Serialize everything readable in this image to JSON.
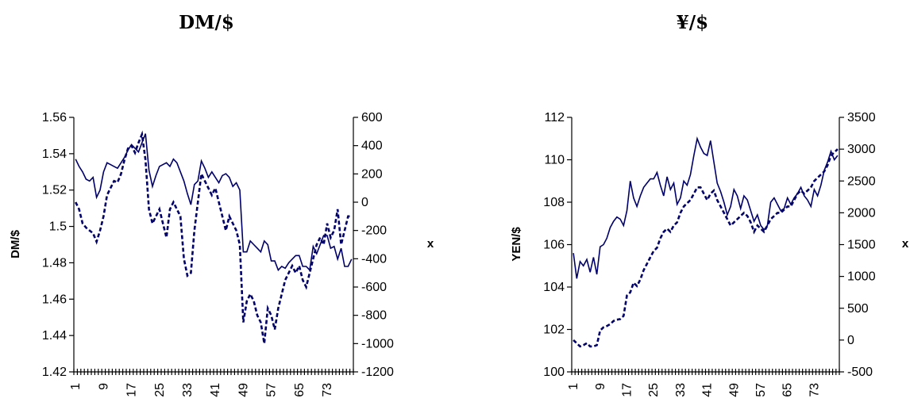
{
  "chart_data": [
    {
      "type": "line",
      "title": "DM/$",
      "ylabel": "DM/$",
      "y2label": "x",
      "ylim": [
        1.42,
        1.56
      ],
      "y2lim": [
        -1200,
        600
      ],
      "yticks": [
        "1.42",
        "1.44",
        "1.46",
        "1.48",
        "1.5",
        "1.52",
        "1.54",
        "1.56"
      ],
      "y2ticks": [
        "-1200",
        "-1000",
        "-800",
        "-600",
        "-400",
        "-200",
        "0",
        "200",
        "400",
        "600"
      ],
      "xticks": [
        "1",
        "9",
        "17",
        "25",
        "33",
        "41",
        "49",
        "57",
        "65",
        "73"
      ],
      "x_count": 80,
      "series": [
        {
          "style": "solid",
          "axis": "left",
          "values": [
            1.537,
            1.533,
            1.53,
            1.526,
            1.525,
            1.527,
            1.516,
            1.52,
            1.53,
            1.535,
            1.534,
            1.533,
            1.532,
            1.535,
            1.538,
            1.542,
            1.545,
            1.543,
            1.541,
            1.546,
            1.551,
            1.531,
            1.522,
            1.528,
            1.533,
            1.534,
            1.535,
            1.533,
            1.537,
            1.535,
            1.53,
            1.525,
            1.518,
            1.512,
            1.523,
            1.525,
            1.536,
            1.532,
            1.527,
            1.53,
            1.527,
            1.524,
            1.528,
            1.529,
            1.527,
            1.522,
            1.524,
            1.52,
            1.486,
            1.486,
            1.492,
            1.49,
            1.488,
            1.486,
            1.492,
            1.49,
            1.481,
            1.481,
            1.476,
            1.478,
            1.477,
            1.48,
            1.482,
            1.484,
            1.484,
            1.478,
            1.478,
            1.476,
            1.489,
            1.485,
            1.49,
            1.495,
            1.495,
            1.488,
            1.489,
            1.482,
            1.488,
            1.478,
            1.478,
            1.482
          ]
        },
        {
          "style": "dashed",
          "axis": "right",
          "values": [
            0,
            -50,
            -150,
            -180,
            -200,
            -220,
            -280,
            -200,
            -100,
            50,
            100,
            150,
            140,
            200,
            300,
            380,
            400,
            350,
            420,
            480,
            300,
            -50,
            -150,
            -100,
            -50,
            -150,
            -250,
            -50,
            0,
            -50,
            -100,
            -400,
            -520,
            -500,
            -200,
            0,
            200,
            150,
            100,
            50,
            100,
            0,
            -100,
            -200,
            -100,
            -150,
            -200,
            -300,
            -850,
            -700,
            -650,
            -700,
            -800,
            -850,
            -1000,
            -750,
            -800,
            -900,
            -750,
            -650,
            -550,
            -500,
            -450,
            -500,
            -450,
            -550,
            -600,
            -500,
            -400,
            -300,
            -250,
            -300,
            -150,
            -250,
            -200,
            -50,
            -300,
            -200,
            -100,
            -100
          ]
        }
      ]
    },
    {
      "type": "line",
      "title": "¥/$",
      "ylabel": "YEN/$",
      "y2label": "x",
      "ylim": [
        100,
        112
      ],
      "y2lim": [
        -500,
        3500
      ],
      "yticks": [
        "100",
        "102",
        "104",
        "106",
        "108",
        "110",
        "112"
      ],
      "y2ticks": [
        "-500",
        "0",
        "500",
        "1000",
        "1500",
        "2000",
        "2500",
        "3000",
        "3500"
      ],
      "xticks": [
        "1",
        "9",
        "17",
        "25",
        "33",
        "41",
        "49",
        "57",
        "65",
        "73"
      ],
      "x_count": 80,
      "series": [
        {
          "style": "solid",
          "axis": "left",
          "values": [
            105.6,
            104.4,
            105.2,
            105.0,
            105.3,
            104.7,
            105.4,
            104.6,
            105.9,
            106.0,
            106.3,
            106.8,
            107.1,
            107.3,
            107.2,
            106.9,
            107.6,
            109.0,
            108.2,
            107.8,
            108.3,
            108.7,
            108.9,
            109.1,
            109.1,
            109.4,
            108.8,
            108.3,
            109.2,
            108.6,
            108.9,
            107.9,
            108.2,
            109.0,
            108.8,
            109.3,
            110.2,
            111.0,
            110.6,
            110.3,
            110.2,
            110.9,
            109.9,
            108.9,
            108.5,
            108.0,
            107.4,
            107.8,
            108.6,
            108.3,
            107.7,
            108.3,
            108.1,
            107.6,
            107.1,
            107.4,
            106.9,
            106.7,
            106.9,
            108.0,
            108.2,
            107.9,
            107.6,
            107.7,
            108.2,
            107.9,
            108.2,
            108.4,
            108.7,
            108.3,
            108.1,
            107.8,
            108.6,
            108.3,
            108.8,
            109.5,
            109.9,
            110.4,
            110.0,
            110.2
          ]
        },
        {
          "style": "dashed",
          "axis": "right",
          "values": [
            0,
            -50,
            -100,
            -80,
            -50,
            -100,
            -100,
            -80,
            150,
            200,
            220,
            250,
            300,
            320,
            330,
            380,
            700,
            750,
            900,
            850,
            950,
            1100,
            1200,
            1300,
            1400,
            1450,
            1600,
            1700,
            1750,
            1700,
            1800,
            1850,
            2000,
            2100,
            2150,
            2200,
            2300,
            2400,
            2400,
            2300,
            2200,
            2300,
            2350,
            2200,
            2100,
            2000,
            1900,
            1800,
            1850,
            1900,
            1950,
            2000,
            1950,
            1850,
            1700,
            1800,
            1750,
            1700,
            1800,
            1900,
            1950,
            2000,
            2000,
            2050,
            2100,
            2100,
            2200,
            2300,
            2350,
            2300,
            2350,
            2400,
            2500,
            2550,
            2600,
            2650,
            2750,
            2900,
            2950,
            3000
          ]
        }
      ]
    }
  ]
}
